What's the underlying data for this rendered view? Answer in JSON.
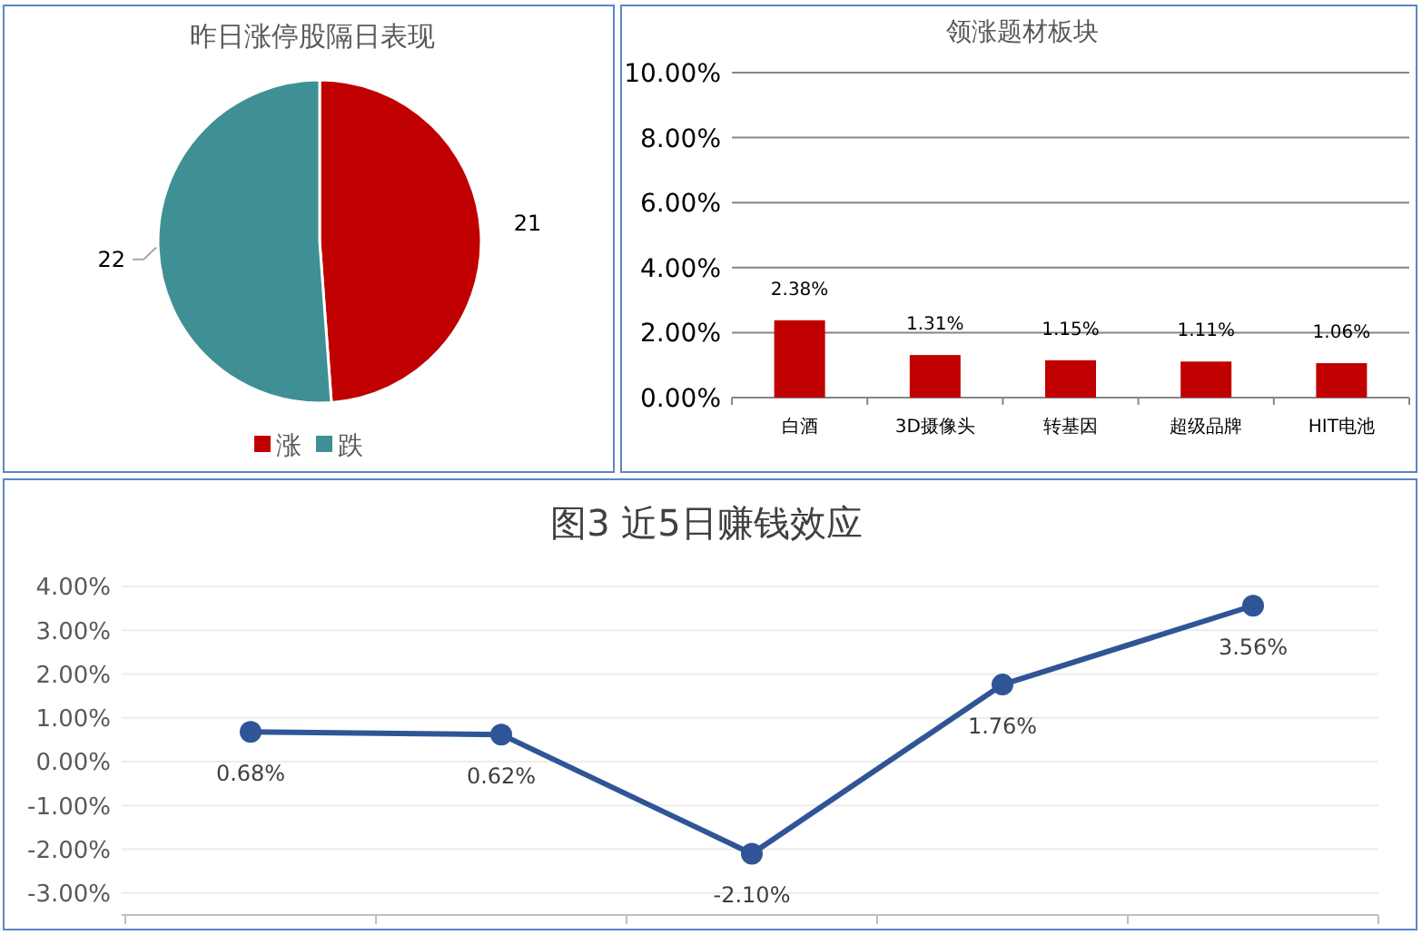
{
  "chart_data": [
    {
      "type": "pie",
      "title": "昨日涨停股隔日表现",
      "categories": [
        "涨",
        "跌"
      ],
      "values": [
        21,
        22
      ],
      "colors": [
        "#c00000",
        "#3f9094"
      ],
      "data_labels": true,
      "legend": "bottom"
    },
    {
      "type": "bar",
      "title": "领涨题材板块",
      "categories": [
        "白酒",
        "3D摄像头",
        "转基因",
        "超级品牌",
        "HIT电池"
      ],
      "values": [
        2.38,
        1.31,
        1.15,
        1.11,
        1.06
      ],
      "color": "#c00000",
      "value_labels": [
        "2.38%",
        "1.31%",
        "1.15%",
        "1.11%",
        "1.06%"
      ],
      "ylim": [
        0,
        10
      ],
      "yticks": [
        {
          "value": 0,
          "label": "0.00%"
        },
        {
          "value": 2,
          "label": "2.00%"
        },
        {
          "value": 4,
          "label": "4.00%"
        },
        {
          "value": 6,
          "label": "6.00%"
        },
        {
          "value": 8,
          "label": "8.00%"
        },
        {
          "value": 10,
          "label": "10.00%"
        }
      ],
      "grid": "y"
    },
    {
      "type": "line",
      "title": "图3 近5日赚钱效应",
      "categories": [
        null,
        null,
        null,
        null,
        null
      ],
      "values": [
        0.68,
        0.62,
        -2.1,
        1.76,
        3.56
      ],
      "color": "#2f5597",
      "marker": "circle",
      "line_style": "solid",
      "value_labels": [
        "0.68%",
        "0.62%",
        "-2.10%",
        "1.76%",
        "3.56%"
      ],
      "ylim": [
        -3.5,
        4
      ],
      "yticks": [
        {
          "value": -3,
          "label": "-3.00%"
        },
        {
          "value": -2,
          "label": "-2.00%"
        },
        {
          "value": -1,
          "label": "-1.00%"
        },
        {
          "value": 0,
          "label": "0.00%"
        },
        {
          "value": 1,
          "label": "1.00%"
        },
        {
          "value": 2,
          "label": "2.00%"
        },
        {
          "value": 3,
          "label": "3.00%"
        },
        {
          "value": 4,
          "label": "4.00%"
        }
      ],
      "grid": "y"
    }
  ]
}
